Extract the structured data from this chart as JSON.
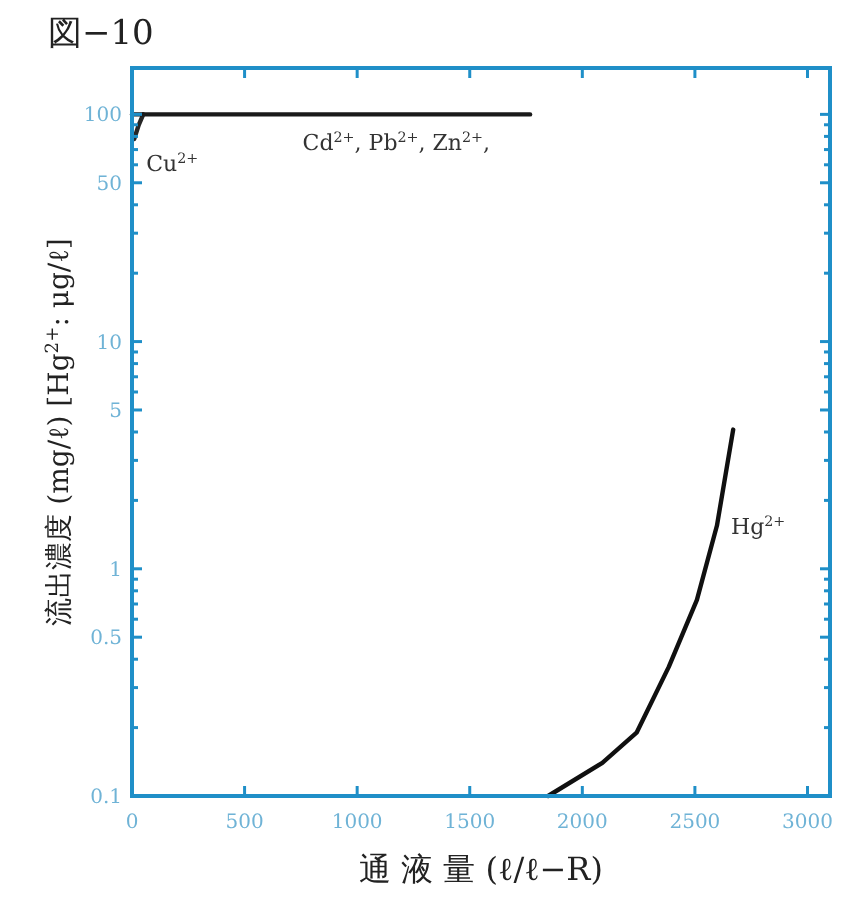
{
  "chart_data": {
    "type": "line",
    "title": "図−10",
    "xlabel": "通 液 量 (ℓ/ℓ−R)",
    "ylabel": "流出濃度 (mg/ℓ) [Hg$^{2+}$: μg/ℓ]",
    "log": "y",
    "grid": false,
    "legend": false,
    "marker": "none",
    "line_style": "solid",
    "xlim": [
      0,
      3100
    ],
    "ylim": [
      0.1,
      160
    ],
    "xticks": [
      0,
      500,
      1000,
      1500,
      2000,
      2500,
      3000
    ],
    "yticks": [
      0.1,
      {
        "value": 0.2,
        "label": null
      },
      {
        "value": 0.3,
        "label": null
      },
      {
        "value": 0.4,
        "label": null
      },
      0.5,
      {
        "value": 0.6,
        "label": null
      },
      {
        "value": 0.7,
        "label": null
      },
      {
        "value": 0.8,
        "label": null
      },
      {
        "value": 0.9,
        "label": null
      },
      1,
      {
        "value": 2,
        "label": null
      },
      {
        "value": 3,
        "label": null
      },
      {
        "value": 4,
        "label": null
      },
      5,
      {
        "value": 6,
        "label": null
      },
      {
        "value": 7,
        "label": null
      },
      {
        "value": 8,
        "label": null
      },
      {
        "value": 9,
        "label": null
      },
      10,
      {
        "value": 20,
        "label": null
      },
      {
        "value": 30,
        "label": null
      },
      {
        "value": 40,
        "label": null
      },
      50,
      {
        "value": 60,
        "label": null
      },
      {
        "value": 70,
        "label": null
      },
      {
        "value": 80,
        "label": null
      },
      {
        "value": 90,
        "label": null
      },
      100
    ],
    "series": [
      {
        "name": "Cu$^{2+}$",
        "color": "#262626",
        "x": [
          50,
          30,
          10
        ],
        "values": [
          100,
          90,
          78
        ]
      },
      {
        "name": "Cd$^{2+}$, Pb$^{2+}$, Zn$^{2+}$,",
        "color": "#1a1a1a",
        "x": [
          0,
          1768
        ],
        "values": [
          100,
          100
        ]
      },
      {
        "name": "Hg$^{2+}$",
        "color": "#101010",
        "x": [
          1848,
          2089,
          2241,
          2384,
          2509,
          2598,
          2670
        ],
        "values": [
          0.1,
          0.14,
          0.19,
          0.37,
          0.73,
          1.55,
          4.1
        ]
      }
    ]
  }
}
